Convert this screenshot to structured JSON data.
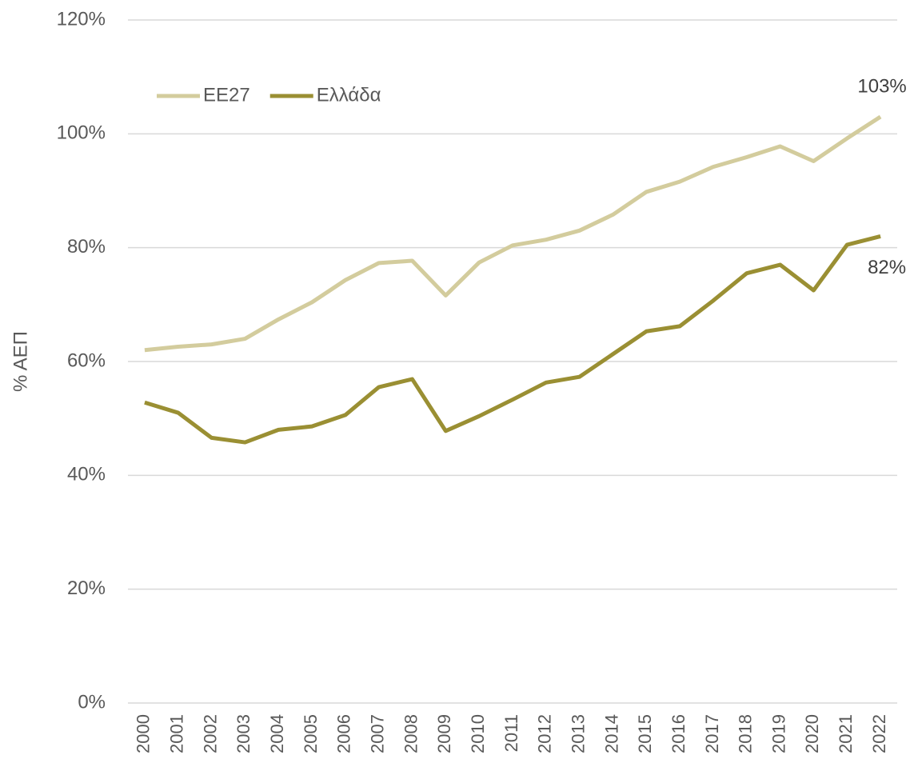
{
  "chart_data": {
    "type": "line",
    "ylabel": "% ΑΕΠ",
    "categories": [
      "2000",
      "2001",
      "2002",
      "2003",
      "2004",
      "2005",
      "2006",
      "2007",
      "2008",
      "2009",
      "2010",
      "2011",
      "2012",
      "2013",
      "2014",
      "2015",
      "2016",
      "2017",
      "2018",
      "2019",
      "2020",
      "2021",
      "2022"
    ],
    "series": [
      {
        "name": "ΕΕ27",
        "color": "#d3cc9d",
        "values": [
          62.0,
          62.6,
          63.0,
          64.0,
          67.4,
          70.4,
          74.3,
          77.3,
          77.7,
          71.6,
          77.4,
          80.4,
          81.4,
          83.0,
          85.8,
          89.8,
          91.6,
          94.2,
          95.9,
          97.8,
          95.2,
          99.2,
          103
        ],
        "value_labels": [
          null,
          null,
          null,
          null,
          null,
          null,
          null,
          null,
          null,
          null,
          null,
          null,
          null,
          null,
          null,
          null,
          null,
          null,
          null,
          null,
          null,
          null,
          "103%"
        ]
      },
      {
        "name": "Ελλάδα",
        "color": "#9a8f33",
        "values": [
          52.8,
          51.0,
          46.6,
          45.8,
          48.0,
          48.6,
          50.6,
          55.5,
          56.9,
          47.8,
          50.4,
          53.3,
          56.3,
          57.3,
          61.3,
          65.3,
          66.2,
          70.7,
          75.5,
          77.0,
          72.5,
          80.5,
          82
        ],
        "value_labels": [
          null,
          null,
          null,
          null,
          null,
          null,
          null,
          null,
          null,
          null,
          null,
          null,
          null,
          null,
          null,
          null,
          null,
          null,
          null,
          null,
          null,
          null,
          "82%"
        ]
      }
    ],
    "ylim": [
      0,
      120
    ],
    "yticks": [
      {
        "value": 0,
        "label": "0%"
      },
      {
        "value": 20,
        "label": "20%"
      },
      {
        "value": 40,
        "label": "40%"
      },
      {
        "value": 60,
        "label": "60%"
      },
      {
        "value": 80,
        "label": "80%"
      },
      {
        "value": 100,
        "label": "100%"
      },
      {
        "value": 120,
        "label": "120%"
      }
    ],
    "grid": true,
    "legend": "top-left"
  }
}
